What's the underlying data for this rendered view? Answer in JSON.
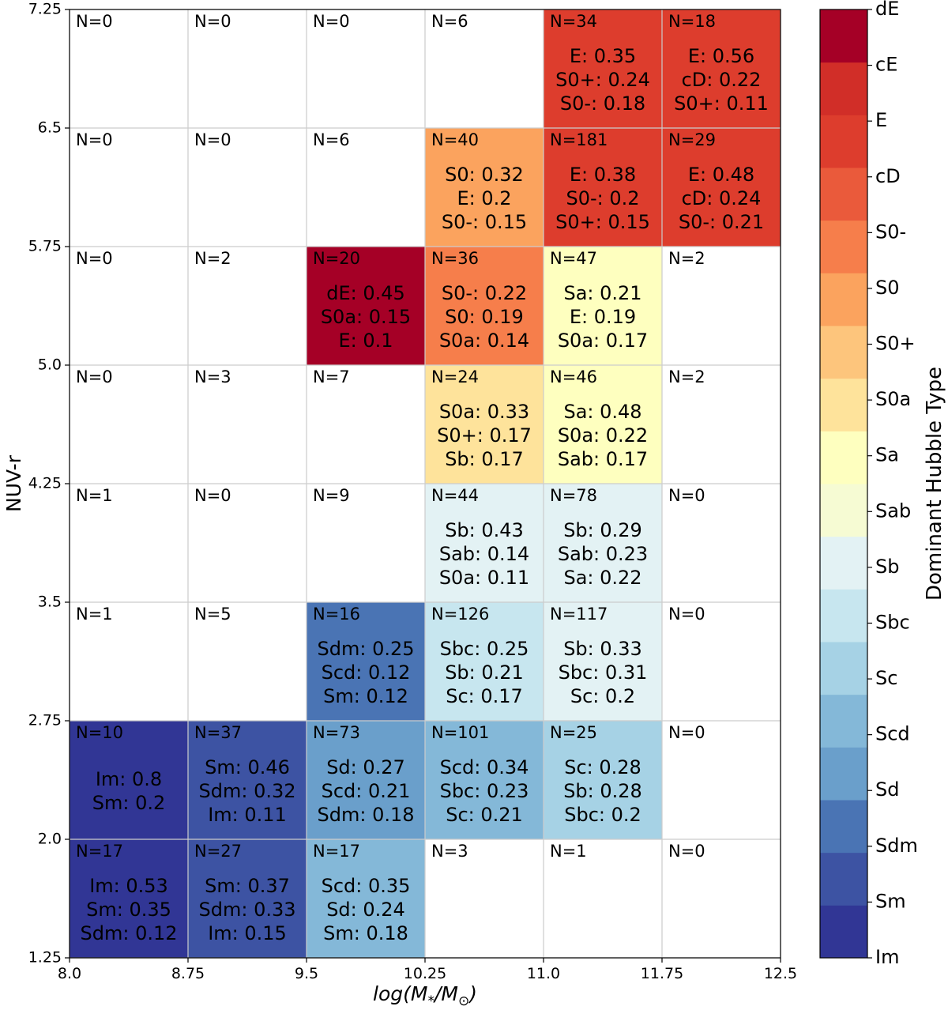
{
  "chart_data": {
    "type": "heatmap",
    "xlabel": "log(M*/M⊙)",
    "ylabel": "NUV-r",
    "x_edges": [
      8.0,
      8.75,
      9.5,
      10.25,
      11.0,
      11.75,
      12.5
    ],
    "y_edges": [
      1.25,
      2.0,
      2.75,
      3.5,
      4.25,
      5.0,
      5.75,
      6.5,
      7.25
    ],
    "x_tick_labels": [
      "8.0",
      "8.75",
      "9.5",
      "10.25",
      "11.0",
      "11.75",
      "12.5"
    ],
    "y_tick_labels": [
      "1.25",
      "2.0",
      "2.75",
      "3.5",
      "4.25",
      "5.0",
      "5.75",
      "6.5",
      "7.25"
    ],
    "xlim": [
      8.0,
      12.5
    ],
    "ylim": [
      1.25,
      7.25
    ],
    "grid": true,
    "colorbar": {
      "label": "Dominant Hubble Type",
      "categories": [
        "Im",
        "Sm",
        "Sdm",
        "Sd",
        "Scd",
        "Sc",
        "Sbc",
        "Sb",
        "Sab",
        "Sa",
        "S0a",
        "S0+",
        "S0",
        "S0-",
        "cD",
        "E",
        "cE",
        "dE"
      ],
      "colors": [
        "#313695",
        "#3d53a3",
        "#4a74b4",
        "#6a9fcb",
        "#84b8d8",
        "#a6d2e5",
        "#c7e6ef",
        "#e3f2f4",
        "#f6fbd3",
        "#feffbf",
        "#fee39b",
        "#fdc57c",
        "#fba35e",
        "#f67e4b",
        "#ea5a3b",
        "#dd3d2d",
        "#d12e28",
        "#a50026"
      ]
    },
    "cells": [
      {
        "x": "8.0-8.75",
        "y": "1.25-2.0",
        "n_label": "N=17",
        "dominant": "Im",
        "mix": [
          "Im: 0.53",
          "Sm: 0.35",
          "Sdm: 0.12"
        ]
      },
      {
        "x": "8.75-9.5",
        "y": "1.25-2.0",
        "n_label": "N=27",
        "dominant": "Sm",
        "mix": [
          "Sm: 0.37",
          "Sdm: 0.33",
          "Im: 0.15"
        ]
      },
      {
        "x": "9.5-10.25",
        "y": "1.25-2.0",
        "n_label": "N=17",
        "dominant": "Scd",
        "mix": [
          "Scd: 0.35",
          "Sd: 0.24",
          "Sm: 0.18"
        ]
      },
      {
        "x": "10.25-11.0",
        "y": "1.25-2.0",
        "n_label": "N=3",
        "dominant": null,
        "mix": []
      },
      {
        "x": "11.0-11.75",
        "y": "1.25-2.0",
        "n_label": "N=1",
        "dominant": null,
        "mix": []
      },
      {
        "x": "11.75-12.5",
        "y": "1.25-2.0",
        "n_label": "N=0",
        "dominant": null,
        "mix": []
      },
      {
        "x": "8.0-8.75",
        "y": "2.0-2.75",
        "n_label": "N=10",
        "dominant": "Im",
        "mix": [
          "Im: 0.8",
          "Sm: 0.2"
        ]
      },
      {
        "x": "8.75-9.5",
        "y": "2.0-2.75",
        "n_label": "N=37",
        "dominant": "Sm",
        "mix": [
          "Sm: 0.46",
          "Sdm: 0.32",
          "Im: 0.11"
        ]
      },
      {
        "x": "9.5-10.25",
        "y": "2.0-2.75",
        "n_label": "N=73",
        "dominant": "Sd",
        "mix": [
          "Sd: 0.27",
          "Scd: 0.21",
          "Sdm: 0.18"
        ]
      },
      {
        "x": "10.25-11.0",
        "y": "2.0-2.75",
        "n_label": "N=101",
        "dominant": "Scd",
        "mix": [
          "Scd: 0.34",
          "Sbc: 0.23",
          "Sc: 0.21"
        ]
      },
      {
        "x": "11.0-11.75",
        "y": "2.0-2.75",
        "n_label": "N=25",
        "dominant": "Sc",
        "mix": [
          "Sc: 0.28",
          "Sb: 0.28",
          "Sbc: 0.2"
        ]
      },
      {
        "x": "11.75-12.5",
        "y": "2.0-2.75",
        "n_label": "N=0",
        "dominant": null,
        "mix": []
      },
      {
        "x": "8.0-8.75",
        "y": "2.75-3.5",
        "n_label": "N=1",
        "dominant": null,
        "mix": []
      },
      {
        "x": "8.75-9.5",
        "y": "2.75-3.5",
        "n_label": "N=5",
        "dominant": null,
        "mix": []
      },
      {
        "x": "9.5-10.25",
        "y": "2.75-3.5",
        "n_label": "N=16",
        "dominant": "Sdm",
        "mix": [
          "Sdm: 0.25",
          "Scd: 0.12",
          "Sm: 0.12"
        ]
      },
      {
        "x": "10.25-11.0",
        "y": "2.75-3.5",
        "n_label": "N=126",
        "dominant": "Sbc",
        "mix": [
          "Sbc: 0.25",
          "Sb: 0.21",
          "Sc: 0.17"
        ]
      },
      {
        "x": "11.0-11.75",
        "y": "2.75-3.5",
        "n_label": "N=117",
        "dominant": "Sb",
        "mix": [
          "Sb: 0.33",
          "Sbc: 0.31",
          "Sc: 0.2"
        ]
      },
      {
        "x": "11.75-12.5",
        "y": "2.75-3.5",
        "n_label": "N=0",
        "dominant": null,
        "mix": []
      },
      {
        "x": "8.0-8.75",
        "y": "3.5-4.25",
        "n_label": "N=1",
        "dominant": null,
        "mix": []
      },
      {
        "x": "8.75-9.5",
        "y": "3.5-4.25",
        "n_label": "N=0",
        "dominant": null,
        "mix": []
      },
      {
        "x": "9.5-10.25",
        "y": "3.5-4.25",
        "n_label": "N=9",
        "dominant": null,
        "mix": []
      },
      {
        "x": "10.25-11.0",
        "y": "3.5-4.25",
        "n_label": "N=44",
        "dominant": "Sb",
        "mix": [
          "Sb: 0.43",
          "Sab: 0.14",
          "S0a: 0.11"
        ]
      },
      {
        "x": "11.0-11.75",
        "y": "3.5-4.25",
        "n_label": "N=78",
        "dominant": "Sb",
        "mix": [
          "Sb: 0.29",
          "Sab: 0.23",
          "Sa: 0.22"
        ]
      },
      {
        "x": "11.75-12.5",
        "y": "3.5-4.25",
        "n_label": "N=0",
        "dominant": null,
        "mix": []
      },
      {
        "x": "8.0-8.75",
        "y": "4.25-5.0",
        "n_label": "N=0",
        "dominant": null,
        "mix": []
      },
      {
        "x": "8.75-9.5",
        "y": "4.25-5.0",
        "n_label": "N=3",
        "dominant": null,
        "mix": []
      },
      {
        "x": "9.5-10.25",
        "y": "4.25-5.0",
        "n_label": "N=7",
        "dominant": null,
        "mix": []
      },
      {
        "x": "10.25-11.0",
        "y": "4.25-5.0",
        "n_label": "N=24",
        "dominant": "S0a",
        "mix": [
          "S0a: 0.33",
          "S0+: 0.17",
          "Sb: 0.17"
        ]
      },
      {
        "x": "11.0-11.75",
        "y": "4.25-5.0",
        "n_label": "N=46",
        "dominant": "Sa",
        "mix": [
          "Sa: 0.48",
          "S0a: 0.22",
          "Sab: 0.17"
        ]
      },
      {
        "x": "11.75-12.5",
        "y": "4.25-5.0",
        "n_label": "N=2",
        "dominant": null,
        "mix": []
      },
      {
        "x": "8.0-8.75",
        "y": "5.0-5.75",
        "n_label": "N=0",
        "dominant": null,
        "mix": []
      },
      {
        "x": "8.75-9.5",
        "y": "5.0-5.75",
        "n_label": "N=2",
        "dominant": null,
        "mix": []
      },
      {
        "x": "9.5-10.25",
        "y": "5.0-5.75",
        "n_label": "N=20",
        "dominant": "dE",
        "mix": [
          "dE: 0.45",
          "S0a: 0.15",
          "E: 0.1"
        ]
      },
      {
        "x": "10.25-11.0",
        "y": "5.0-5.75",
        "n_label": "N=36",
        "dominant": "S0-",
        "mix": [
          "S0-: 0.22",
          "S0: 0.19",
          "S0a: 0.14"
        ]
      },
      {
        "x": "11.0-11.75",
        "y": "5.0-5.75",
        "n_label": "N=47",
        "dominant": "Sa",
        "mix": [
          "Sa: 0.21",
          "E: 0.19",
          "S0a: 0.17"
        ]
      },
      {
        "x": "11.75-12.5",
        "y": "5.0-5.75",
        "n_label": "N=2",
        "dominant": null,
        "mix": []
      },
      {
        "x": "8.0-8.75",
        "y": "5.75-6.5",
        "n_label": "N=0",
        "dominant": null,
        "mix": []
      },
      {
        "x": "8.75-9.5",
        "y": "5.75-6.5",
        "n_label": "N=0",
        "dominant": null,
        "mix": []
      },
      {
        "x": "9.5-10.25",
        "y": "5.75-6.5",
        "n_label": "N=6",
        "dominant": null,
        "mix": []
      },
      {
        "x": "10.25-11.0",
        "y": "5.75-6.5",
        "n_label": "N=40",
        "dominant": "S0",
        "mix": [
          "S0: 0.32",
          "E: 0.2",
          "S0-: 0.15"
        ]
      },
      {
        "x": "11.0-11.75",
        "y": "5.75-6.5",
        "n_label": "N=181",
        "dominant": "E",
        "mix": [
          "E: 0.38",
          "S0-: 0.2",
          "S0+: 0.15"
        ]
      },
      {
        "x": "11.75-12.5",
        "y": "5.75-6.5",
        "n_label": "N=29",
        "dominant": "E",
        "mix": [
          "E: 0.48",
          "cD: 0.24",
          "S0-: 0.21"
        ]
      },
      {
        "x": "8.0-8.75",
        "y": "6.5-7.25",
        "n_label": "N=0",
        "dominant": null,
        "mix": []
      },
      {
        "x": "8.75-9.5",
        "y": "6.5-7.25",
        "n_label": "N=0",
        "dominant": null,
        "mix": []
      },
      {
        "x": "9.5-10.25",
        "y": "6.5-7.25",
        "n_label": "N=0",
        "dominant": null,
        "mix": []
      },
      {
        "x": "10.25-11.0",
        "y": "6.5-7.25",
        "n_label": "N=6",
        "dominant": null,
        "mix": []
      },
      {
        "x": "11.0-11.75",
        "y": "6.5-7.25",
        "n_label": "N=34",
        "dominant": "E",
        "mix": [
          "E: 0.35",
          "S0+: 0.24",
          "S0-: 0.18"
        ]
      },
      {
        "x": "11.75-12.5",
        "y": "6.5-7.25",
        "n_label": "N=18",
        "dominant": "E",
        "mix": [
          "E: 0.56",
          "cD: 0.22",
          "S0+: 0.11"
        ]
      }
    ]
  }
}
